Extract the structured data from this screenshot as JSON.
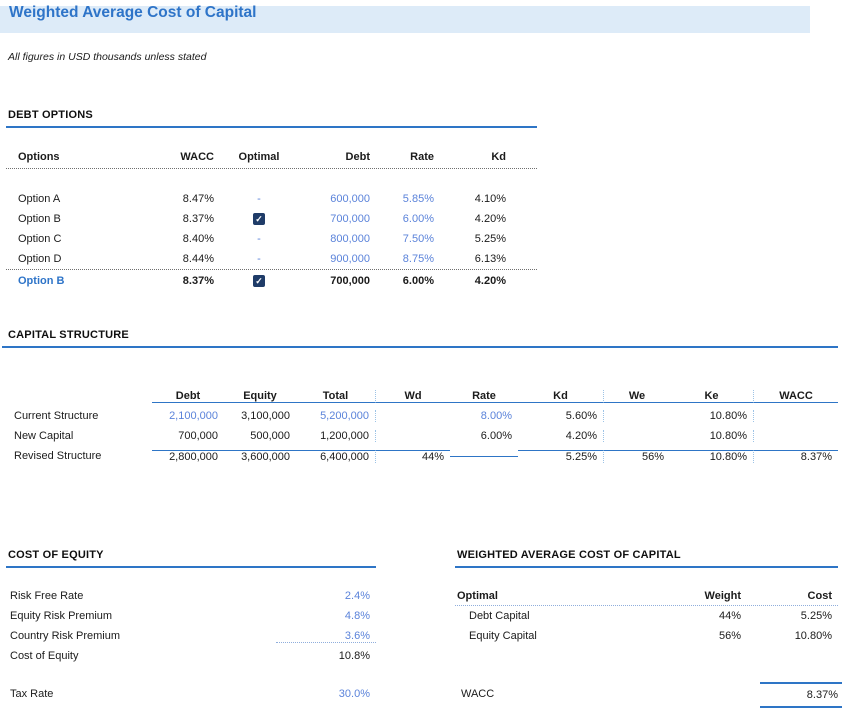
{
  "page": {
    "title": "Weighted Average Cost of Capital",
    "subtitle": "All figures in USD thousands unless stated"
  },
  "colors": {
    "accent_blue": "#2E74C8",
    "input_blue": "#5B83DA",
    "title_bar_bg": "#DDEBF8",
    "checkbox_navy": "#1F3C68",
    "rule_blue": "#2E75C6"
  },
  "debt_options": {
    "heading": "DEBT OPTIONS",
    "columns": [
      "Options",
      "WACC",
      "Optimal",
      "Debt",
      "Rate",
      "Kd"
    ],
    "rows": [
      {
        "option": "Option A",
        "wacc": "8.47%",
        "checked": false,
        "debt": "600,000",
        "rate": "5.85%",
        "kd": "4.10%"
      },
      {
        "option": "Option B",
        "wacc": "8.37%",
        "checked": true,
        "debt": "700,000",
        "rate": "6.00%",
        "kd": "4.20%"
      },
      {
        "option": "Option C",
        "wacc": "8.40%",
        "checked": false,
        "debt": "800,000",
        "rate": "7.50%",
        "kd": "5.25%"
      },
      {
        "option": "Option D",
        "wacc": "8.44%",
        "checked": false,
        "debt": "900,000",
        "rate": "8.75%",
        "kd": "6.13%"
      }
    ],
    "summary": {
      "option": "Option B",
      "wacc": "8.37%",
      "checked": true,
      "debt": "700,000",
      "rate": "6.00%",
      "kd": "4.20%"
    },
    "checkmark": "✓",
    "dash": "-"
  },
  "capital_structure": {
    "heading": "CAPITAL STRUCTURE",
    "columns": [
      "",
      "Debt",
      "Equity",
      "Total",
      "Wd",
      "Rate",
      "Kd",
      "We",
      "Ke",
      "WACC"
    ],
    "rows": [
      {
        "label": "Current Structure",
        "debt": "2,100,000",
        "equity": "3,100,000",
        "total": "5,200,000",
        "wd": "",
        "rate": "8.00%",
        "kd": "5.60%",
        "we": "",
        "ke": "10.80%",
        "wacc": ""
      },
      {
        "label": "New Capital",
        "debt": "700,000",
        "equity": "500,000",
        "total": "1,200,000",
        "wd": "",
        "rate": "6.00%",
        "kd": "4.20%",
        "we": "",
        "ke": "10.80%",
        "wacc": ""
      },
      {
        "label": "Revised Structure",
        "debt": "2,800,000",
        "equity": "3,600,000",
        "total": "6,400,000",
        "wd": "44%",
        "rate": "",
        "kd": "5.25%",
        "we": "56%",
        "ke": "10.80%",
        "wacc": "8.37%"
      }
    ]
  },
  "cost_of_equity": {
    "heading": "COST OF EQUITY",
    "rows": [
      {
        "label": "Risk Free Rate",
        "value": "2.4%"
      },
      {
        "label": "Equity Risk Premium",
        "value": "4.8%"
      },
      {
        "label": "Country Risk Premium",
        "value": "3.6%"
      },
      {
        "label": "Cost of Equity",
        "value": "10.8%"
      }
    ],
    "tax": {
      "label": "Tax Rate",
      "value": "30.0%"
    }
  },
  "wacc_summary": {
    "heading": "WEIGHTED AVERAGE COST OF CAPITAL",
    "columns": [
      "Optimal",
      "Weight",
      "Cost"
    ],
    "rows": [
      {
        "label": "Debt Capital",
        "weight": "44%",
        "cost": "5.25%"
      },
      {
        "label": "Equity Capital",
        "weight": "56%",
        "cost": "10.80%"
      }
    ],
    "total": {
      "label": "WACC",
      "value": "8.37%"
    }
  }
}
